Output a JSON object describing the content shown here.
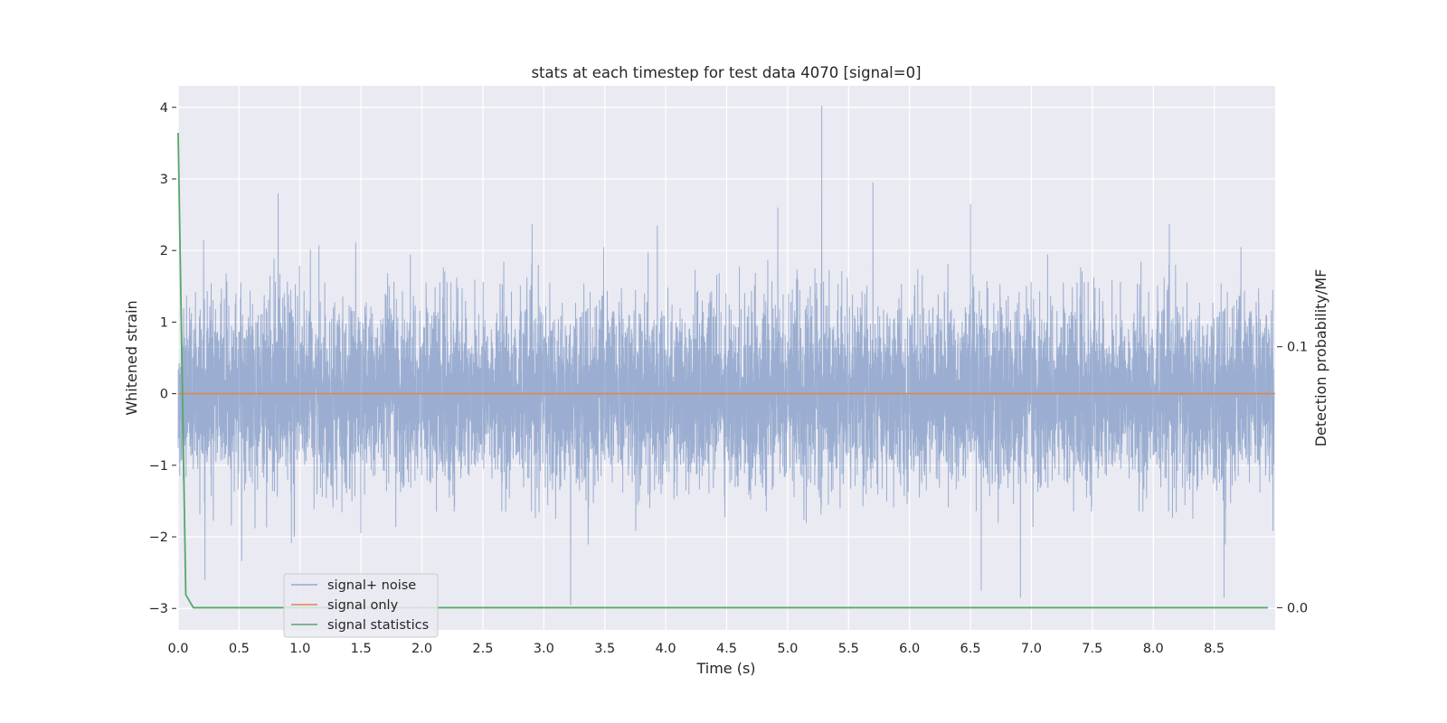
{
  "chart_data": {
    "type": "line",
    "title": "stats at each timestep for test data 4070 [signal=0]",
    "xlabel": "Time (s)",
    "ylabel": "Whitened strain",
    "y2label": "Detection probability/MF",
    "xlim": [
      0.0,
      9.0
    ],
    "ylim": [
      -3.3,
      4.3
    ],
    "y2lim": [
      -0.0085,
      0.2
    ],
    "xticks": [
      "0.0",
      "0.5",
      "1.0",
      "1.5",
      "2.0",
      "2.5",
      "3.0",
      "3.5",
      "4.0",
      "4.5",
      "5.0",
      "5.5",
      "6.0",
      "6.5",
      "7.0",
      "7.5",
      "8.0",
      "8.5"
    ],
    "xtick_values": [
      0.0,
      0.5,
      1.0,
      1.5,
      2.0,
      2.5,
      3.0,
      3.5,
      4.0,
      4.5,
      5.0,
      5.5,
      6.0,
      6.5,
      7.0,
      7.5,
      8.0,
      8.5
    ],
    "yticks": [
      "−3",
      "−2",
      "−1",
      "0",
      "1",
      "2",
      "3",
      "4"
    ],
    "ytick_values": [
      -3,
      -2,
      -1,
      0,
      1,
      2,
      3,
      4
    ],
    "y2ticks": [
      "0.0",
      "0.1"
    ],
    "y2tick_values": [
      0.0,
      0.1
    ],
    "grid": true,
    "legend_position": "lower-left",
    "series": [
      {
        "name": "signal+ noise",
        "color": "#4c72b0",
        "axis": "left",
        "description_stats": {
          "n_samples": 9000,
          "approx_std": 0.62,
          "approx_max": 4.0,
          "approx_min": -2.95
        },
        "peaks": [
          {
            "x": 0.82,
            "y": 2.8
          },
          {
            "x": 3.22,
            "y": -2.95
          },
          {
            "x": 4.92,
            "y": 2.6
          },
          {
            "x": 5.28,
            "y": 4.02
          },
          {
            "x": 5.7,
            "y": 2.95
          },
          {
            "x": 6.5,
            "y": 2.65
          },
          {
            "x": 6.91,
            "y": -2.85
          },
          {
            "x": 8.58,
            "y": -2.85
          },
          {
            "x": 0.22,
            "y": -2.6
          }
        ]
      },
      {
        "name": "signal only",
        "color": "#dd8452",
        "axis": "left",
        "x": [
          0.0,
          9.0
        ],
        "y": [
          0.0,
          0.0
        ]
      },
      {
        "name": "signal statistics",
        "color": "#55a868",
        "axis": "right",
        "x": [
          0.0,
          0.0625,
          0.125,
          8.94
        ],
        "y": [
          0.182,
          0.005,
          0.0,
          0.0
        ]
      }
    ]
  }
}
